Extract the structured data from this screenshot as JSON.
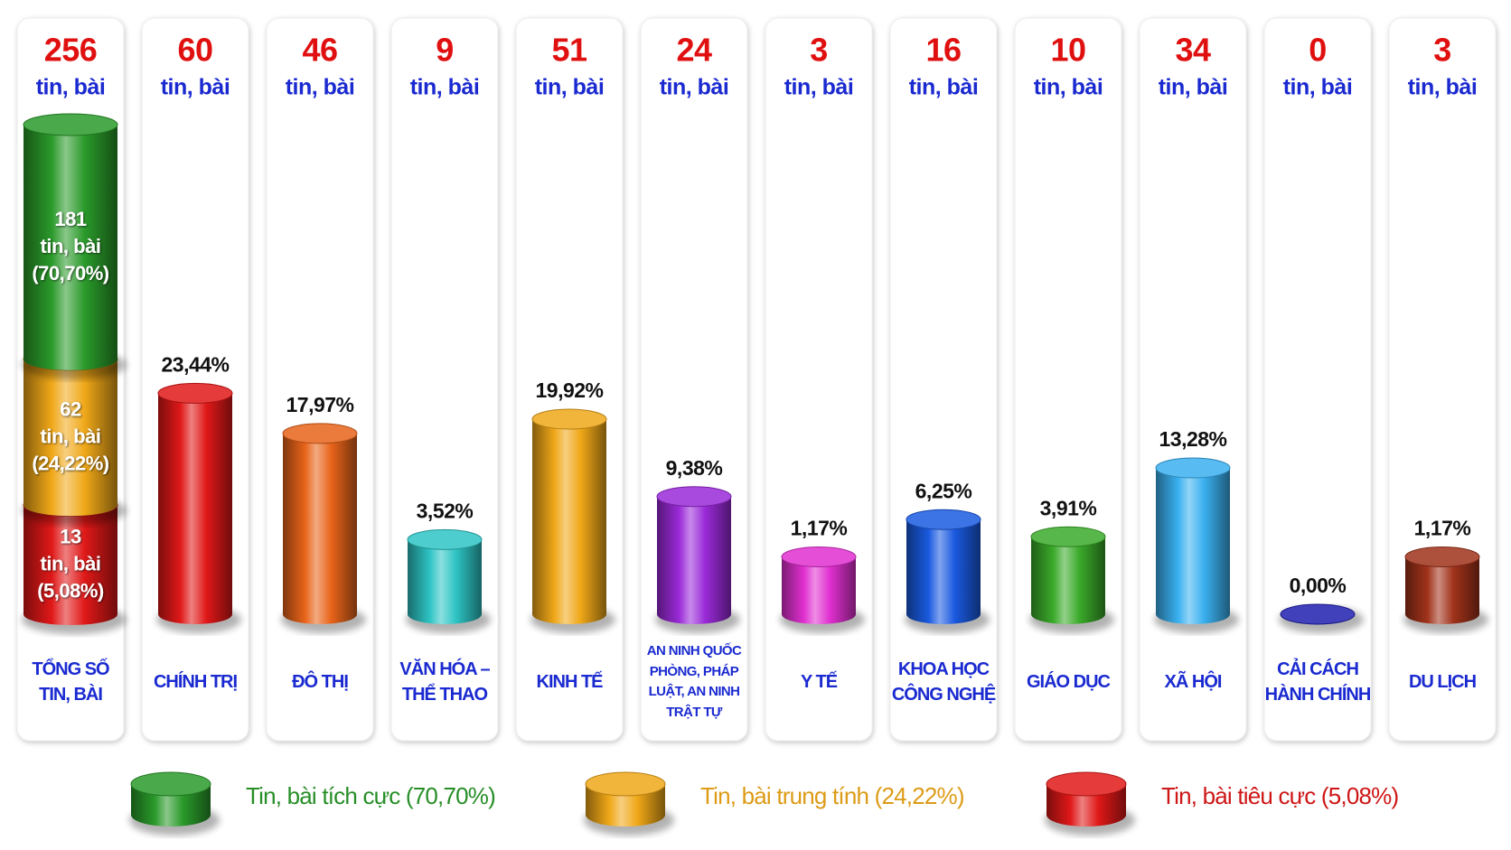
{
  "chart_data": {
    "type": "bar",
    "unit": "tin, bài",
    "categories": [
      "TỔNG SỐ TIN, BÀI",
      "CHÍNH TRỊ",
      "ĐÔ THỊ",
      "VĂN HÓA – THỂ THAO",
      "KINH TẾ",
      "AN NINH QUỐC PHÒNG, PHÁP LUẬT, AN NINH TRẬT TỰ",
      "Y TẾ",
      "KHOA HỌC CÔNG NGHỆ",
      "GIÁO DỤC",
      "XÃ HỘI",
      "CẢI CÁCH HÀNH CHÍNH",
      "DU LỊCH"
    ],
    "counts": [
      256,
      60,
      46,
      9,
      51,
      24,
      3,
      16,
      10,
      34,
      0,
      3
    ],
    "values": [
      null,
      23.44,
      17.97,
      3.52,
      19.92,
      9.38,
      1.17,
      6.25,
      3.91,
      13.28,
      0,
      1.17
    ],
    "value_labels": [
      null,
      "23,44%",
      "17,97%",
      "3,52%",
      "19,92%",
      "9,38%",
      "1,17%",
      "6,25%",
      "3,91%",
      "13,28%",
      "0,00%",
      "1,17%"
    ],
    "colors": [
      null,
      "#e01818",
      "#e8641a",
      "#2ec4c4",
      "#f0a818",
      "#9a2ad8",
      "#e030d0",
      "#1a5ae0",
      "#3aaa2a",
      "#3ab0f0",
      "#2020b0",
      "#a0321a"
    ],
    "series": [
      {
        "name": "Tin, bài tích cực (70,70%)",
        "color": "#2a9a2a",
        "count": 181,
        "value": 70.7,
        "value_label": "(70,70%)"
      },
      {
        "name": "Tin, bài trung tính (24,22%)",
        "color": "#f0a818",
        "count": 62,
        "value": 24.22,
        "value_label": "(24,22%)"
      },
      {
        "name": "Tin, bài tiêu cực (5,08%)",
        "color": "#e01818",
        "count": 13,
        "value": 5.08,
        "value_label": "(5,08%)"
      }
    ]
  }
}
